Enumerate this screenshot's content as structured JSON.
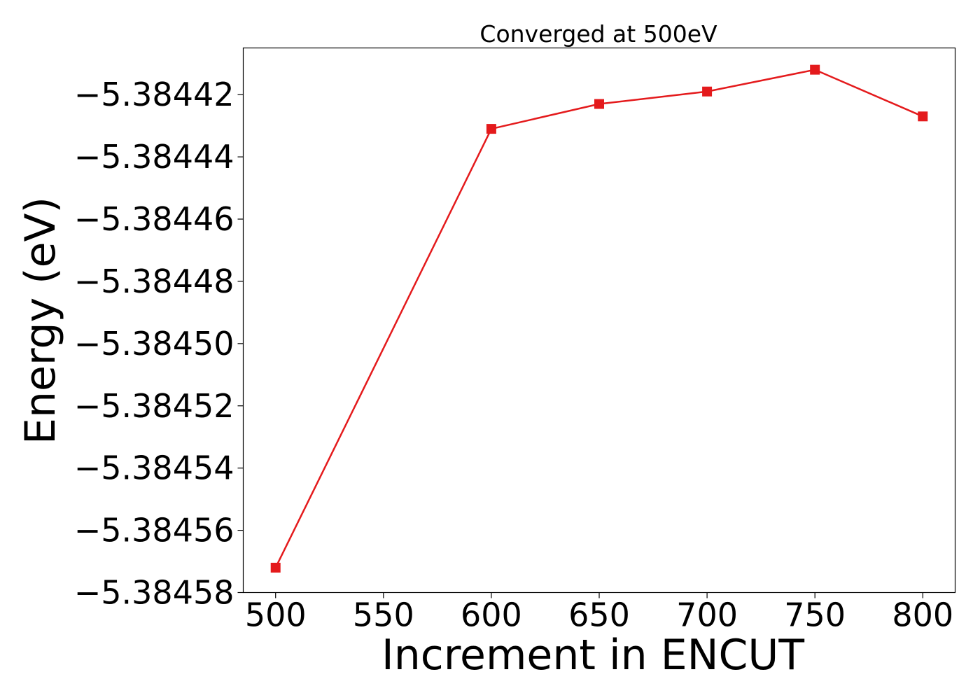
{
  "chart_data": {
    "type": "line",
    "title": "Converged at 500eV",
    "xlabel": "Increment in ENCUT",
    "ylabel": "Energy (eV)",
    "x": [
      500,
      600,
      650,
      700,
      750,
      800
    ],
    "series": [
      {
        "values": [
          -5.384572,
          -5.384431,
          -5.384423,
          -5.384419,
          -5.384412,
          -5.384427
        ],
        "color": "#e41a1c",
        "marker": "square"
      }
    ],
    "xticks": [
      500,
      550,
      600,
      650,
      700,
      750,
      800
    ],
    "xtick_labels": [
      "500",
      "550",
      "600",
      "650",
      "700",
      "750",
      "800"
    ],
    "yticks": [
      -5.38442,
      -5.38444,
      -5.38446,
      -5.38448,
      -5.3845,
      -5.38452,
      -5.38454,
      -5.38456,
      -5.38458
    ],
    "ytick_labels": [
      "−5.38442",
      "−5.38444",
      "−5.38446",
      "−5.38448",
      "−5.38450",
      "−5.38452",
      "−5.38454",
      "−5.38456",
      "−5.38458"
    ],
    "xlim": [
      485,
      815
    ],
    "ylim": [
      -5.38458,
      -5.384405
    ],
    "grid": false,
    "legend": "none"
  }
}
